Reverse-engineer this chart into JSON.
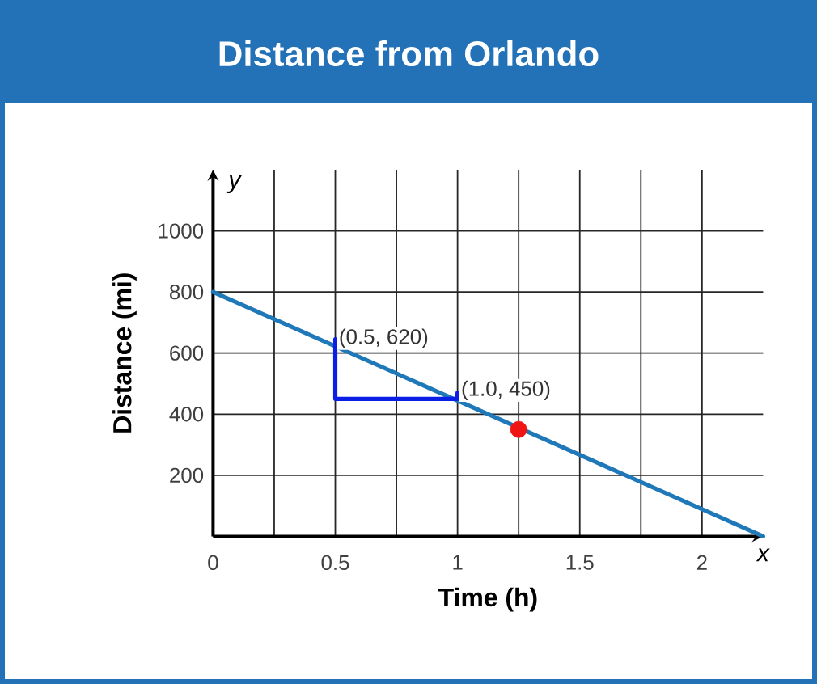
{
  "chart_data": {
    "type": "line",
    "title": "Distance from Orlando",
    "xlabel": "Time (h)",
    "ylabel": "Distance (mi)",
    "annotations": [
      {
        "text": "(0.5, 620)",
        "x": 0.5,
        "y": 620
      },
      {
        "text": "(1.0, 450)",
        "x": 1.0,
        "y": 450
      },
      "y",
      "x"
    ],
    "series": [
      {
        "x": [
          0,
          2.25
        ],
        "values": [
          800,
          0
        ],
        "color": "#1f78b8"
      },
      {
        "x": [
          0.5,
          0.5,
          1.0,
          1.0
        ],
        "values": [
          645,
          450,
          450,
          470
        ],
        "color": "#0a1ee6"
      },
      {
        "type": "scatter",
        "x": [
          1.25
        ],
        "values": [
          350
        ],
        "color": "#f01414",
        "marker": "circle"
      }
    ],
    "xlim": [
      0,
      2.25
    ],
    "ylim": [
      0,
      1200
    ],
    "xticks": [
      0,
      {
        "value": 0.25,
        "label": null
      },
      0.5,
      {
        "value": 0.75,
        "label": null
      },
      1,
      {
        "value": 1.25,
        "label": null
      },
      1.5,
      {
        "value": 1.75,
        "label": null
      },
      2
    ],
    "yticks": [
      200,
      400,
      600,
      800,
      1000
    ],
    "grid": true
  }
}
